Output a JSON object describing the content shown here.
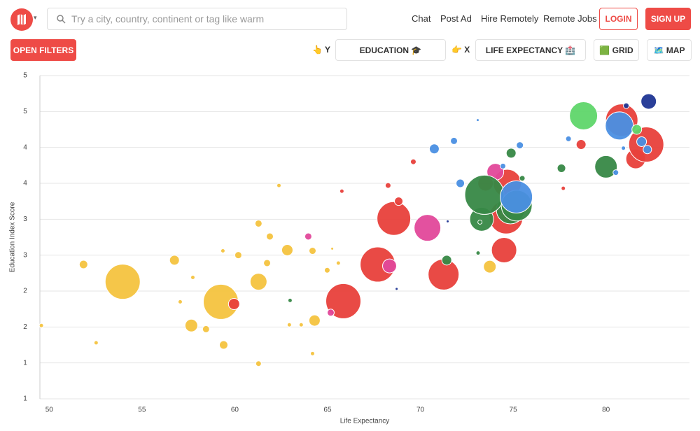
{
  "header": {
    "search_placeholder": "Try a city, country, continent or tag like warm",
    "nav": [
      "Chat",
      "Post Ad",
      "Hire Remotely",
      "Remote Jobs"
    ],
    "login": "LOGIN",
    "signup": "SIGN UP"
  },
  "toolbar": {
    "open_filters": "OPEN FILTERS",
    "y_axis_label": "👆 Y",
    "y_axis_value": "EDUCATION 🎓",
    "x_axis_label": "👉 X",
    "x_axis_value": "LIFE EXPECTANCY 🏥",
    "grid": "🟩 GRID",
    "map": "🗺️ MAP"
  },
  "chart_data": {
    "type": "bubble",
    "x_label": "Life Expectancy",
    "y_label": "Education Index Score",
    "xlim": [
      49.5,
      84.5
    ],
    "xticks": [
      50,
      55,
      60,
      65,
      70,
      75,
      80
    ],
    "ylim": [
      0.6,
      5.1
    ],
    "yticks": [
      {
        "value": 0.6,
        "label": "1"
      },
      {
        "value": 1.1,
        "label": "1"
      },
      {
        "value": 1.6,
        "label": "2"
      },
      {
        "value": 2.1,
        "label": "2"
      },
      {
        "value": 2.6,
        "label": "3"
      },
      {
        "value": 3.1,
        "label": "3"
      },
      {
        "value": 3.6,
        "label": "4"
      },
      {
        "value": 4.1,
        "label": "4"
      },
      {
        "value": 4.6,
        "label": "5"
      },
      {
        "value": 5.1,
        "label": "5"
      }
    ],
    "grid": true,
    "series": [
      {
        "color": "#f4c33f",
        "x": [
          49.58,
          51.85,
          52.53,
          53.96,
          56.75,
          57.06,
          57.66,
          57.74,
          58.45,
          59.25,
          59.36,
          59.4,
          60.19,
          61.28,
          61.28,
          61.28,
          61.74,
          61.89,
          62.38,
          62.83,
          62.94,
          63.58,
          64.19,
          64.3,
          64.19,
          64.98,
          65.58,
          65.25,
          73.74
        ],
        "values": [
          1.62,
          2.47,
          1.38,
          2.23,
          2.53,
          1.95,
          1.62,
          2.29,
          1.57,
          1.95,
          2.66,
          1.35,
          2.6,
          2.23,
          3.04,
          1.09,
          2.49,
          2.86,
          3.57,
          2.67,
          1.63,
          1.63,
          2.66,
          1.69,
          1.23,
          2.39,
          2.49,
          2.69,
          2.44
        ],
        "sizes": [
          3,
          6,
          3,
          25,
          7,
          3,
          9,
          3,
          5,
          25,
          3,
          6,
          5,
          12,
          5,
          4,
          5,
          5,
          3,
          8,
          3,
          3,
          5,
          8,
          3,
          4,
          3,
          2,
          9
        ]
      },
      {
        "color": "#e8403b",
        "x": [
          59.96,
          65.85,
          67.7,
          68.57,
          71.25,
          74.51,
          74.62,
          81.6,
          82.17,
          80.85,
          78.66,
          68.26,
          68.83,
          65.77,
          69.62,
          73.51,
          74.68,
          77.7
        ],
        "values": [
          1.92,
          1.96,
          2.47,
          3.11,
          2.33,
          2.67,
          3.13,
          3.94,
          4.14,
          4.48,
          4.14,
          3.57,
          3.35,
          3.49,
          3.9,
          3.6,
          3.6,
          3.53
        ],
        "sizes": [
          8,
          25,
          25,
          24,
          22,
          18,
          24,
          14,
          25,
          23,
          7,
          4,
          6,
          3,
          4,
          11,
          20,
          3
        ]
      },
      {
        "color": "#e2489a",
        "x": [
          65.17,
          68.34,
          70.38,
          63.96,
          74.04
        ],
        "values": [
          1.8,
          2.45,
          2.98,
          2.86,
          3.76
        ],
        "sizes": [
          5,
          10,
          19,
          5,
          12
        ]
      },
      {
        "color": "#378846",
        "x": [
          62.98,
          71.42,
          74.85,
          73.3,
          73.45,
          75.19,
          73.11,
          74.89,
          77.6,
          80.0,
          75.49,
          73.21
        ],
        "values": [
          1.97,
          2.53,
          3.23,
          3.1,
          3.44,
          3.29,
          2.63,
          4.02,
          3.81,
          3.83,
          3.67,
          3.06
        ],
        "sizes": [
          3,
          7,
          20,
          17,
          28,
          22,
          3,
          7,
          6,
          16,
          4,
          3
        ]
      },
      {
        "color": "#4a8fe3",
        "x": [
          70.75,
          71.81,
          72.15,
          74.45,
          75.36,
          75.17,
          80.72,
          77.98,
          81.92,
          82.23,
          80.53,
          73.09,
          80.94
        ],
        "values": [
          4.08,
          4.19,
          3.6,
          3.84,
          4.13,
          3.41,
          4.4,
          4.22,
          4.18,
          4.07,
          3.75,
          4.48,
          4.09
        ],
        "sizes": [
          7,
          5,
          6,
          4,
          5,
          23,
          20,
          4,
          7,
          6,
          4,
          2,
          3
        ]
      },
      {
        "color": "#1f3593",
        "x": [
          82.3,
          81.09,
          68.72,
          71.47
        ],
        "values": [
          4.74,
          4.68,
          2.13,
          3.07
        ],
        "sizes": [
          11,
          4,
          2,
          2
        ]
      },
      {
        "color": "#5fd66a",
        "x": [
          78.79,
          81.66
        ],
        "values": [
          4.54,
          4.35
        ],
        "sizes": [
          20,
          7
        ]
      }
    ]
  }
}
